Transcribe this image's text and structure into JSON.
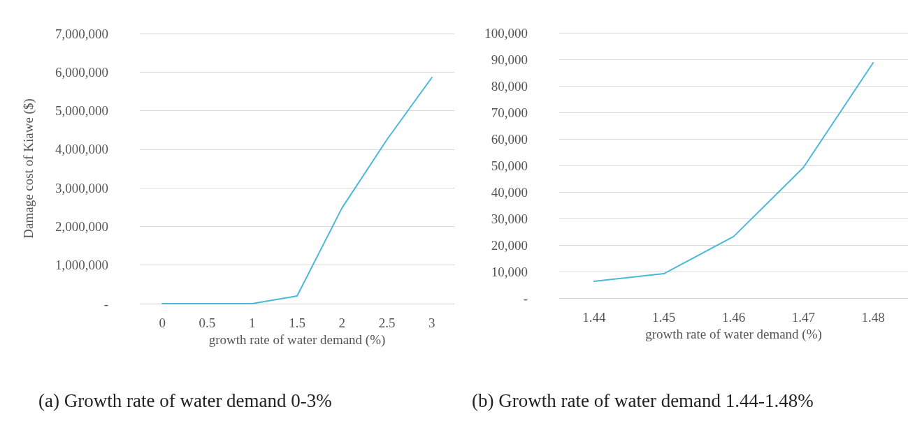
{
  "chart_data": [
    {
      "type": "line",
      "title": "(a) Growth rate of water demand 0-3%",
      "xlabel": "growth rate of water demand (%)",
      "ylabel": "Damage cost of Kiawe ($)",
      "categories": [
        "0",
        "0.5",
        "1",
        "1.5",
        "2",
        "2.5",
        "3"
      ],
      "series": [
        {
          "color": "#4bb8d8",
          "values": [
            0,
            0,
            0,
            200000,
            2480000,
            4250000,
            5860000
          ]
        }
      ],
      "ylim": [
        0,
        7000000
      ],
      "yticks": [
        {
          "value": 0,
          "label": "-"
        },
        {
          "value": 1000000,
          "label": "1,000,000"
        },
        {
          "value": 2000000,
          "label": "2,000,000"
        },
        {
          "value": 3000000,
          "label": "3,000,000"
        },
        {
          "value": 4000000,
          "label": "4,000,000"
        },
        {
          "value": 5000000,
          "label": "5,000,000"
        },
        {
          "value": 6000000,
          "label": "6,000,000"
        },
        {
          "value": 7000000,
          "label": "7,000,000"
        }
      ],
      "grid": "y",
      "marker": "none",
      "line_style": "solid"
    },
    {
      "type": "line",
      "title": "(b) Growth rate of water demand 1.44-1.48%",
      "xlabel": "growth rate of water demand (%)",
      "categories": [
        "1.44",
        "1.45",
        "1.46",
        "1.47",
        "1.48"
      ],
      "series": [
        {
          "color": "#4bb8d8",
          "values": [
            6300,
            9200,
            23200,
            49200,
            88700
          ]
        }
      ],
      "ylim": [
        0,
        100000
      ],
      "yticks": [
        {
          "value": 0,
          "label": "-"
        },
        {
          "value": 10000,
          "label": "10,000"
        },
        {
          "value": 20000,
          "label": "20,000"
        },
        {
          "value": 30000,
          "label": "30,000"
        },
        {
          "value": 40000,
          "label": "40,000"
        },
        {
          "value": 50000,
          "label": "50,000"
        },
        {
          "value": 60000,
          "label": "60,000"
        },
        {
          "value": 70000,
          "label": "70,000"
        },
        {
          "value": 80000,
          "label": "80,000"
        },
        {
          "value": 90000,
          "label": "90,000"
        },
        {
          "value": 100000,
          "label": "100,000"
        }
      ],
      "grid": "y",
      "marker": "none",
      "line_style": "solid"
    }
  ]
}
